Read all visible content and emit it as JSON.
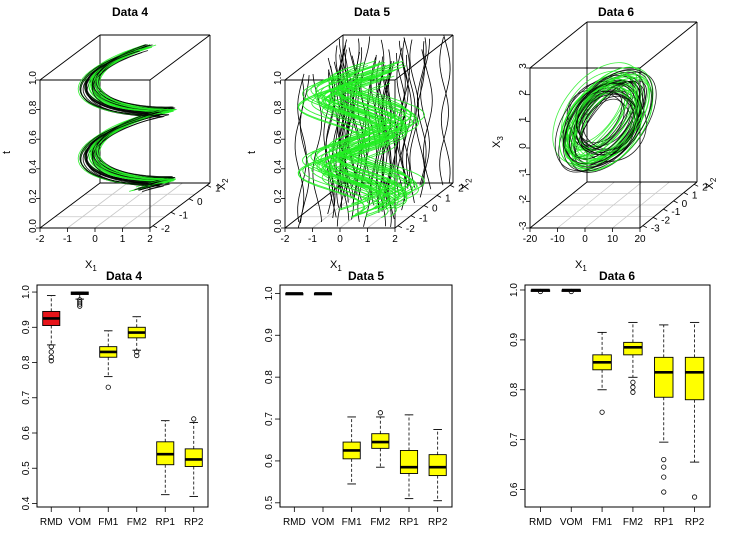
{
  "figure": {
    "top_panels": [
      {
        "title": "Data 4",
        "xlabel": "X",
        "xlabel_sub": "1",
        "vlabel": "t",
        "dlabel": "X",
        "dlabel_sub": "2",
        "v_ticks": [
          "0.0",
          "0.2",
          "0.4",
          "0.6",
          "0.8",
          "1.0"
        ],
        "x_ticks": [
          "-2",
          "-1",
          "0",
          "1",
          "2"
        ],
        "d_ticks": [
          "1",
          "0",
          "-1",
          "-2"
        ]
      },
      {
        "title": "Data 5",
        "xlabel": "X",
        "xlabel_sub": "1",
        "vlabel": "t",
        "dlabel": "X",
        "dlabel_sub": "2",
        "v_ticks": [
          "0.0",
          "0.2",
          "0.4",
          "0.6",
          "0.8",
          "1.0"
        ],
        "x_ticks": [
          "-2",
          "-1",
          "0",
          "1",
          "2"
        ],
        "d_ticks": [
          "2",
          "1",
          "0",
          "-1",
          "-2"
        ]
      },
      {
        "title": "Data 6",
        "xlabel": "X",
        "xlabel_sub": "1",
        "vlabel": "X",
        "vlabel_sub": "3",
        "dlabel": "X",
        "dlabel_sub": "2",
        "v_ticks": [
          "-3",
          "-2",
          "-1",
          "0",
          "1",
          "2",
          "3"
        ],
        "x_ticks": [
          "-20",
          "-10",
          "0",
          "10",
          "20"
        ],
        "d_ticks": [
          "2",
          "1",
          "0",
          "-1",
          "-2",
          "-3"
        ]
      }
    ]
  },
  "chart_data": [
    {
      "type": "box",
      "title": "Data 4",
      "categories": [
        "RMD",
        "VOM",
        "FM1",
        "FM2",
        "RP1",
        "RP2"
      ],
      "ylim": [
        0.39,
        1.02
      ],
      "yticks": [
        0.4,
        0.5,
        0.6,
        0.7,
        0.8,
        0.9,
        1.0
      ],
      "ytick_labels": [
        "0.4",
        "0.5",
        "0.6",
        "0.7",
        "0.8",
        "0.9",
        "1.0"
      ],
      "colors": [
        "#e8141a",
        "#e8141a",
        "#ffff00",
        "#ffff00",
        "#ffff00",
        "#ffff00"
      ],
      "boxes": [
        {
          "min": 0.85,
          "q1": 0.905,
          "median": 0.925,
          "q3": 0.945,
          "max": 0.99,
          "outliers": [
            0.845,
            0.83,
            0.815,
            0.805
          ]
        },
        {
          "min": 0.98,
          "q1": 0.993,
          "median": 0.997,
          "q3": 1.0,
          "max": 1.0,
          "outliers": [
            0.978,
            0.972,
            0.966,
            0.96
          ]
        },
        {
          "min": 0.76,
          "q1": 0.815,
          "median": 0.83,
          "q3": 0.845,
          "max": 0.89,
          "outliers": [
            0.73
          ]
        },
        {
          "min": 0.835,
          "q1": 0.87,
          "median": 0.885,
          "q3": 0.9,
          "max": 0.93,
          "outliers": [
            0.83,
            0.82
          ]
        },
        {
          "min": 0.425,
          "q1": 0.51,
          "median": 0.54,
          "q3": 0.575,
          "max": 0.635,
          "outliers": []
        },
        {
          "min": 0.42,
          "q1": 0.505,
          "median": 0.525,
          "q3": 0.555,
          "max": 0.63,
          "outliers": [
            0.64
          ]
        }
      ]
    },
    {
      "type": "box",
      "title": "Data 5",
      "categories": [
        "RMD",
        "VOM",
        "FM1",
        "FM2",
        "RP1",
        "RP2"
      ],
      "ylim": [
        0.49,
        1.02
      ],
      "yticks": [
        0.5,
        0.6,
        0.7,
        0.8,
        0.9,
        1.0
      ],
      "ytick_labels": [
        "0.5",
        "0.6",
        "0.7",
        "0.8",
        "0.9",
        "1.0"
      ],
      "colors": [
        "#e8141a",
        "#e8141a",
        "#ffff00",
        "#ffff00",
        "#ffff00",
        "#ffff00"
      ],
      "boxes": [
        {
          "min": 1.0,
          "q1": 1.0,
          "median": 1.0,
          "q3": 1.0,
          "max": 1.0,
          "outliers": []
        },
        {
          "min": 1.0,
          "q1": 1.0,
          "median": 1.0,
          "q3": 1.0,
          "max": 1.0,
          "outliers": []
        },
        {
          "min": 0.545,
          "q1": 0.605,
          "median": 0.625,
          "q3": 0.645,
          "max": 0.705,
          "outliers": []
        },
        {
          "min": 0.585,
          "q1": 0.63,
          "median": 0.645,
          "q3": 0.665,
          "max": 0.705,
          "outliers": [
            0.715
          ]
        },
        {
          "min": 0.51,
          "q1": 0.57,
          "median": 0.585,
          "q3": 0.625,
          "max": 0.71,
          "outliers": []
        },
        {
          "min": 0.505,
          "q1": 0.565,
          "median": 0.585,
          "q3": 0.615,
          "max": 0.675,
          "outliers": []
        }
      ]
    },
    {
      "type": "box",
      "title": "Data 6",
      "categories": [
        "RMD",
        "VOM",
        "FM1",
        "FM2",
        "RP1",
        "RP2"
      ],
      "ylim": [
        0.565,
        1.01
      ],
      "yticks": [
        0.6,
        0.7,
        0.8,
        0.9,
        1.0
      ],
      "ytick_labels": [
        "0.6",
        "0.7",
        "0.8",
        "0.9",
        "1.0"
      ],
      "colors": [
        "#e8141a",
        "#e8141a",
        "#ffff00",
        "#ffff00",
        "#ffff00",
        "#ffff00"
      ],
      "boxes": [
        {
          "min": 1.0,
          "q1": 1.0,
          "median": 1.0,
          "q3": 1.0,
          "max": 1.0,
          "outliers": [
            0.997
          ]
        },
        {
          "min": 1.0,
          "q1": 1.0,
          "median": 1.0,
          "q3": 1.0,
          "max": 1.0,
          "outliers": [
            0.997
          ]
        },
        {
          "min": 0.8,
          "q1": 0.84,
          "median": 0.855,
          "q3": 0.87,
          "max": 0.915,
          "outliers": [
            0.755
          ]
        },
        {
          "min": 0.825,
          "q1": 0.87,
          "median": 0.885,
          "q3": 0.895,
          "max": 0.935,
          "outliers": [
            0.815,
            0.805,
            0.795
          ]
        },
        {
          "min": 0.695,
          "q1": 0.785,
          "median": 0.835,
          "q3": 0.865,
          "max": 0.93,
          "outliers": [
            0.66,
            0.645,
            0.625,
            0.595
          ]
        },
        {
          "min": 0.655,
          "q1": 0.78,
          "median": 0.835,
          "q3": 0.865,
          "max": 0.935,
          "outliers": [
            0.585
          ]
        }
      ]
    }
  ]
}
